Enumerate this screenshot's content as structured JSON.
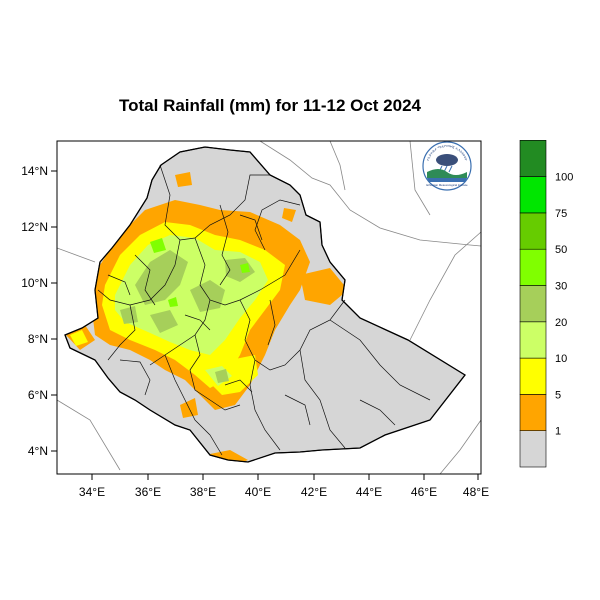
{
  "title": "Total Rainfall (mm) for 11-12 Oct 2024",
  "map": {
    "x_ticks": [
      "34°E",
      "36°E",
      "38°E",
      "40°E",
      "42°E",
      "44°E",
      "46°E",
      "48°E"
    ],
    "y_ticks": [
      "14°N",
      "12°N",
      "10°N",
      "8°N",
      "6°N",
      "4°N"
    ]
  },
  "legend": {
    "classes": [
      {
        "label": "",
        "color": "#d6d6d6"
      },
      {
        "label": "1",
        "color": "#ffa500"
      },
      {
        "label": "5",
        "color": "#ffff00"
      },
      {
        "label": "10",
        "color": "#ccff66"
      },
      {
        "label": "20",
        "color": "#a6cf5a"
      },
      {
        "label": "30",
        "color": "#80ff00"
      },
      {
        "label": "50",
        "color": "#66cc00"
      },
      {
        "label": "75",
        "color": "#00e600"
      },
      {
        "label": "100",
        "color": "#228b22"
      }
    ]
  },
  "logo": {
    "text_top": "የኢትዮጵያ ሚቲዮሮሎጂ ኢንስቲትዩት",
    "text_bottom": "Ethiopian Meteorological Institute"
  }
}
